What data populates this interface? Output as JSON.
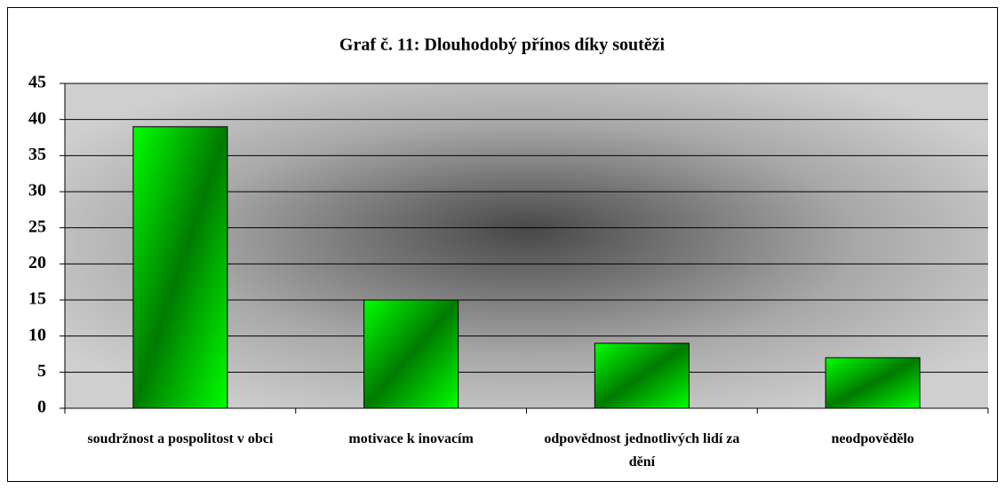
{
  "chart_data": {
    "type": "bar",
    "title": "Graf č. 11: Dlouhodobý přínos díky soutěži",
    "categories": [
      "soudržnost a pospolitost v obci",
      "motivace k inovacím",
      "odpovědnost jednotlivých lidí za dění",
      "neodpovědělo"
    ],
    "values": [
      39,
      15,
      9,
      7
    ],
    "color": "#00ff00",
    "ylim": [
      0,
      45
    ],
    "yticks": [
      0,
      5,
      10,
      15,
      20,
      25,
      30,
      35,
      40,
      45
    ],
    "grid": true
  }
}
